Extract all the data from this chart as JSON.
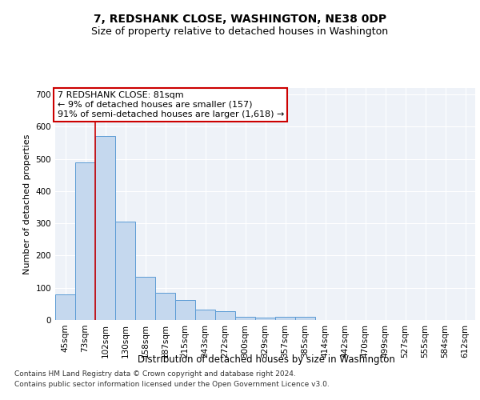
{
  "title": "7, REDSHANK CLOSE, WASHINGTON, NE38 0DP",
  "subtitle": "Size of property relative to detached houses in Washington",
  "xlabel": "Distribution of detached houses by size in Washington",
  "ylabel": "Number of detached properties",
  "categories": [
    "45sqm",
    "73sqm",
    "102sqm",
    "130sqm",
    "158sqm",
    "187sqm",
    "215sqm",
    "243sqm",
    "272sqm",
    "300sqm",
    "329sqm",
    "357sqm",
    "385sqm",
    "414sqm",
    "442sqm",
    "470sqm",
    "499sqm",
    "527sqm",
    "555sqm",
    "584sqm",
    "612sqm"
  ],
  "values": [
    80,
    490,
    570,
    305,
    135,
    85,
    62,
    32,
    27,
    10,
    8,
    10,
    10,
    0,
    0,
    0,
    0,
    0,
    0,
    0,
    0
  ],
  "bar_color": "#c5d8ee",
  "bar_edge_color": "#5b9bd5",
  "vline_x": 1.5,
  "vline_color": "#cc0000",
  "annotation_text": "7 REDSHANK CLOSE: 81sqm\n← 9% of detached houses are smaller (157)\n91% of semi-detached houses are larger (1,618) →",
  "annotation_box_color": "#cc0000",
  "ylim": [
    0,
    720
  ],
  "yticks": [
    0,
    100,
    200,
    300,
    400,
    500,
    600,
    700
  ],
  "background_color": "#eef2f8",
  "grid_color": "#ffffff",
  "footer1": "Contains HM Land Registry data © Crown copyright and database right 2024.",
  "footer2": "Contains public sector information licensed under the Open Government Licence v3.0.",
  "title_fontsize": 10,
  "subtitle_fontsize": 9,
  "xlabel_fontsize": 8.5,
  "ylabel_fontsize": 8,
  "tick_fontsize": 7.5,
  "annotation_fontsize": 8,
  "footer_fontsize": 6.5
}
